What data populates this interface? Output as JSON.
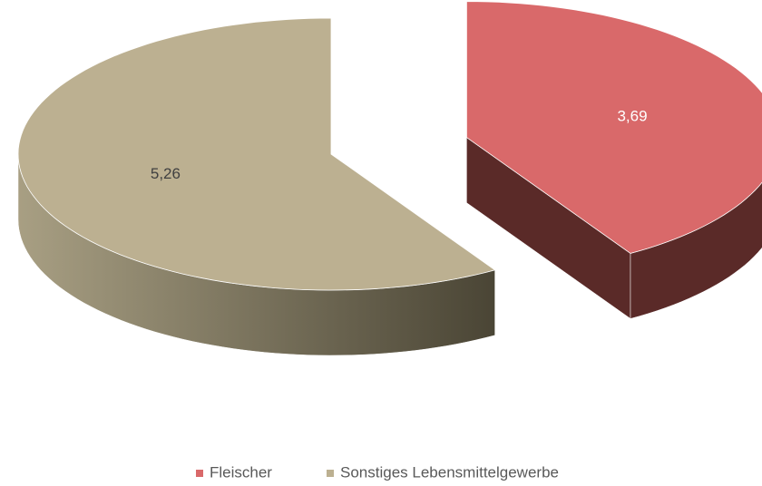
{
  "chart_data": {
    "type": "pie",
    "categories": [
      "Fleischer",
      "Sonstiges Lebensmittelgewerbe"
    ],
    "values": [
      3.69,
      5.26
    ],
    "value_labels": [
      "3,69",
      "5,26"
    ],
    "colors": [
      "#d9696a",
      "#bcb091"
    ],
    "legend": "bottom"
  }
}
